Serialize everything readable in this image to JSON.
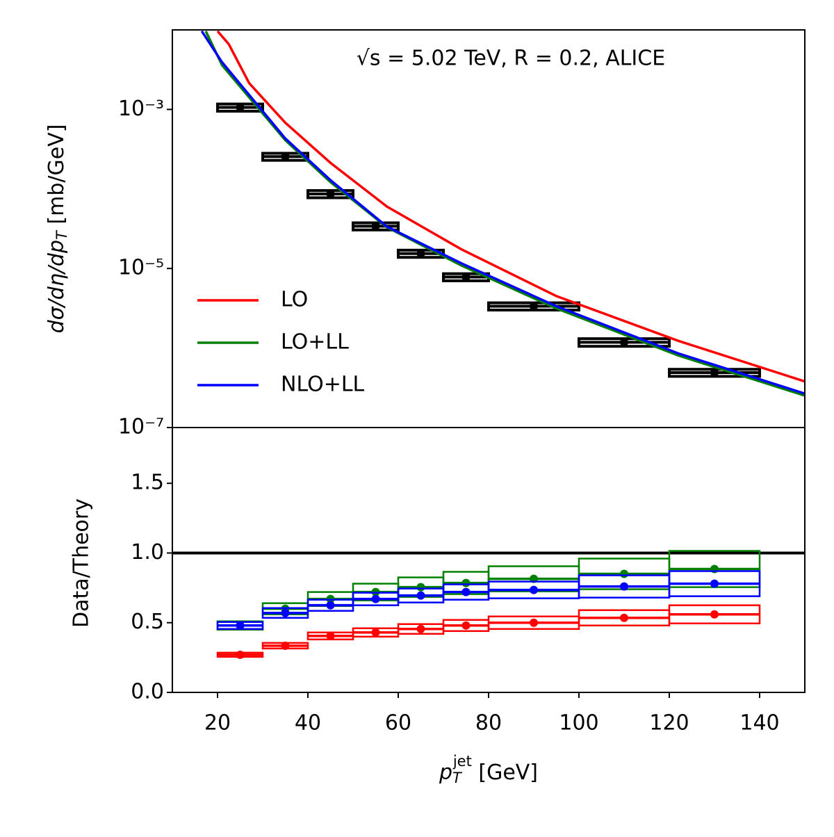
{
  "chart_data": [
    {
      "type": "line",
      "yscale": "log",
      "xlim": [
        10,
        150
      ],
      "ylim": [
        1e-07,
        0.01
      ],
      "yticks": [
        {
          "value": 1e-07,
          "label": "10⁻⁷"
        },
        {
          "value": 1e-05,
          "label": "10⁻⁵"
        },
        {
          "value": 0.001,
          "label": "10⁻³"
        }
      ],
      "annotation": "√s = 5.02 TeV, R = 0.2, ALICE",
      "y_label": {
        "main": "dσ/dη/dp",
        "sub": "T",
        "unit": " [mb/GeV]"
      },
      "legend": "lower left",
      "data_points": {
        "color": "#000000",
        "bins": [
          20,
          30,
          40,
          50,
          60,
          70,
          80,
          100,
          120,
          140
        ],
        "values": [
          0.00106,
          0.000255,
          8.65e-05,
          3.4e-05,
          1.54e-05,
          7.8e-06,
          3.35e-06,
          1.18e-06,
          4.9e-07
        ],
        "errors": [
          0.00011,
          2.6e-05,
          9e-06,
          3.5e-06,
          1.6e-06,
          8e-07,
          3.5e-07,
          1.3e-07,
          5e-08
        ]
      },
      "series": [
        {
          "name": "LO",
          "color": "#ff0000",
          "x": [
            20,
            22.5,
            27,
            35,
            45,
            57.5,
            74,
            95,
            122,
            150
          ],
          "values": [
            0.00966,
            0.0066,
            0.00214,
            0.00068,
            0.000213,
            6e-05,
            1.74e-05,
            4.5e-06,
            1.23e-06,
            3.8e-07
          ]
        },
        {
          "name": "LO+LL",
          "color": "#008000",
          "x": [
            17.4,
            21,
            35,
            45,
            57.5,
            74,
            95,
            122,
            150
          ],
          "values": [
            0.00966,
            0.0036,
            0.00041,
            0.000122,
            3.3e-05,
            1.09e-05,
            3.15e-06,
            8.05e-07,
            2.52e-07
          ]
        },
        {
          "name": "NLO+LL",
          "color": "#0000ff",
          "x": [
            16.5,
            21,
            35,
            45,
            57.5,
            74,
            95,
            122,
            150
          ],
          "values": [
            0.00966,
            0.00392,
            0.000431,
            0.000129,
            3.36e-05,
            1.16e-05,
            3.35e-06,
            8.55e-07,
            2.67e-07
          ]
        }
      ]
    },
    {
      "type": "errorbox",
      "xlim": [
        10,
        150
      ],
      "ylim": [
        0,
        1.9
      ],
      "xticks": [
        20,
        40,
        60,
        80,
        100,
        120,
        140
      ],
      "yticks": [
        {
          "value": 0,
          "label": "0.0"
        },
        0.5,
        {
          "value": 1,
          "label": "1.0"
        },
        1.5
      ],
      "hline": 1,
      "y_label": "Data/Theory",
      "x_label": {
        "main": "p",
        "sub": "T",
        "sup": "jet",
        "unit": " [GeV]"
      },
      "bins": [
        20,
        30,
        40,
        50,
        60,
        70,
        80,
        100,
        120,
        140
      ],
      "series": [
        {
          "color": "#ff0000",
          "values": [
            0.27,
            0.335,
            0.405,
            0.43,
            0.455,
            0.48,
            0.5,
            0.535,
            0.56
          ],
          "errors": [
            0.015,
            0.02,
            0.025,
            0.03,
            0.035,
            0.04,
            0.045,
            0.055,
            0.065
          ]
        },
        {
          "color": "#008000",
          "values": [
            0.48,
            0.6,
            0.67,
            0.72,
            0.755,
            0.785,
            0.815,
            0.85,
            0.885
          ],
          "errors": [
            0.03,
            0.04,
            0.05,
            0.06,
            0.07,
            0.08,
            0.09,
            0.11,
            0.13
          ]
        },
        {
          "color": "#0000ff",
          "values": [
            0.48,
            0.57,
            0.625,
            0.67,
            0.695,
            0.72,
            0.735,
            0.76,
            0.78
          ],
          "errors": [
            0.025,
            0.035,
            0.04,
            0.045,
            0.05,
            0.055,
            0.06,
            0.08,
            0.09
          ]
        }
      ]
    }
  ]
}
